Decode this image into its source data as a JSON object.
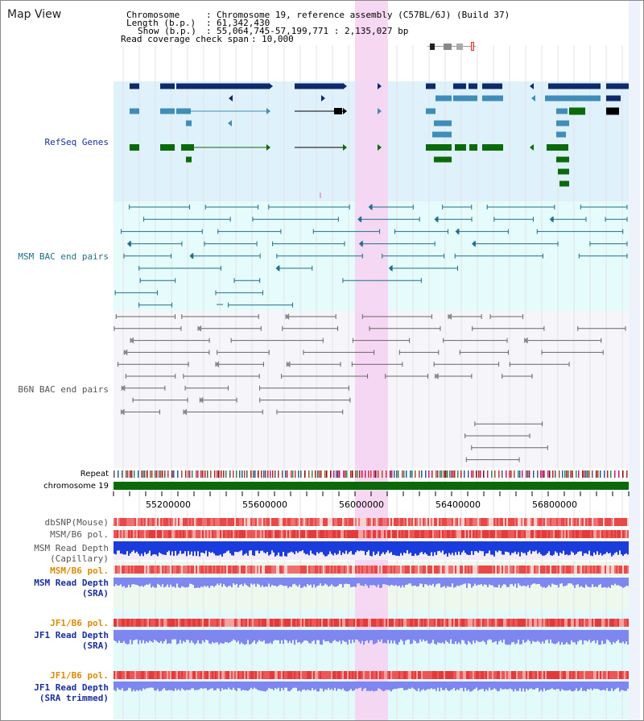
{
  "panel": {
    "title": "Map View"
  },
  "header": {
    "chromosome_key": "Chromosome",
    "chromosome_val": "Chromosome 19, reference assembly (C57BL/6J) (Build 37)",
    "length_key": "Length (b.p.)",
    "length_val": "61,342,430",
    "show_key": "Show (b.p.)",
    "show_val": "55,064,745-57,199,771 : 2,135,027 bp",
    "span_key": "Read coverage check span",
    "span_val": "10,000"
  },
  "tracks": {
    "refseq": "RefSeq Genes",
    "msm_bac": "MSM BAC end pairs",
    "b6n_bac": "B6N BAC end pairs",
    "repeat": "Repeat",
    "chromosome": "chromosome 19",
    "dbsnp": "dbSNP(Mouse)",
    "msm_pol": "MSM/B6 pol.",
    "msm_depth_cap_1": "MSM Read Depth",
    "msm_depth_cap_2": "(Capillary)",
    "msm_pol_sra": "MSM/B6 pol.",
    "msm_depth_sra_1": "MSM Read Depth",
    "msm_depth_sra_2": "(SRA)",
    "jf1_pol_1": "JF1/B6 pol.",
    "jf1_depth_1": "JF1 Read Depth",
    "jf1_depth_1b": "(SRA)",
    "jf1_pol_2": "JF1/B6 pol.",
    "jf1_depth_2": "JF1 Read Depth",
    "jf1_depth_2b": "(SRA trimmed)"
  },
  "axis": {
    "ticks": [
      "55200000",
      "55600000",
      "56000000",
      "56400000",
      "56800000"
    ]
  },
  "colors": {
    "refseq_bg": "#dff1fa",
    "msm_bg": "#e6fbfb",
    "b6n_bg": "#f6f6fa",
    "highlight": "#f6d4f2",
    "gene_dark": "#0d2a6b",
    "gene_mid": "#3f8db8",
    "gene_green": "#0a6b0a",
    "msm_line": "#1e6f8a",
    "b6n_line": "#666666",
    "chromosome_bar": "#0a6a0a",
    "depth_blue": "#1a3cdc",
    "depth_periwinkle": "#7e86f0",
    "pol_red": "#e33a3a",
    "label_navy": "#1a2ea0",
    "label_orange": "#e08a00",
    "label_teal": "#1e6f8a"
  }
}
